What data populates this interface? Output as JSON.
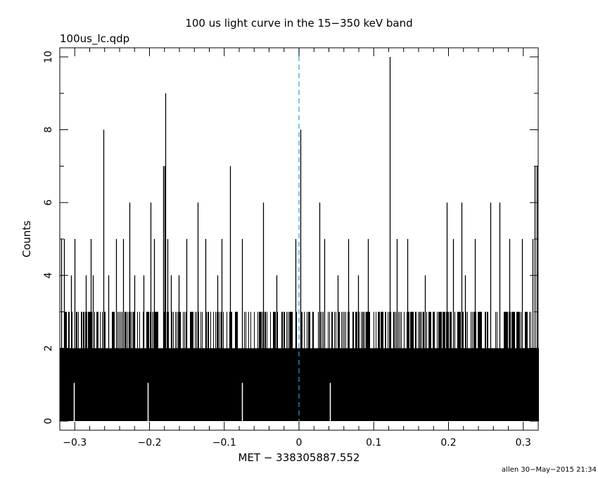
{
  "chart_data": {
    "type": "bar",
    "title": "100 us light curve in the 15−350 keV band",
    "file_label": "100us_lc.qdp",
    "xlabel": "MET − 338305887.552",
    "ylabel": "Counts",
    "footer": "allen 30−May−2015 21:34",
    "xlim": [
      -0.32,
      0.32
    ],
    "ylim": [
      -0.25,
      10.25
    ],
    "x_ticks": [
      -0.3,
      -0.2,
      -0.1,
      0,
      0.1,
      0.2,
      0.3
    ],
    "x_tick_labels": [
      "−0.3",
      "−0.2",
      "−0.1",
      "0",
      "0.1",
      "0.2",
      "0.3"
    ],
    "y_ticks": [
      0,
      2,
      4,
      6,
      8,
      10
    ],
    "y_tick_labels": [
      "0",
      "2",
      "4",
      "6",
      "8",
      "10"
    ],
    "bin_width": 0.0001,
    "grid": false,
    "trigger_line": {
      "x": 0,
      "color": "#2a9fd6",
      "style": "dashed"
    },
    "bar_color": "#000000",
    "series": [
      {
        "values_note_free": true,
        "peaks": [
          {
            "x": -0.318,
            "y": 5
          },
          {
            "x": -0.314,
            "y": 5
          },
          {
            "x": -0.305,
            "y": 4
          },
          {
            "x": -0.3,
            "y": 5
          },
          {
            "x": -0.285,
            "y": 4
          },
          {
            "x": -0.279,
            "y": 5
          },
          {
            "x": -0.276,
            "y": 4
          },
          {
            "x": -0.262,
            "y": 8
          },
          {
            "x": -0.255,
            "y": 4
          },
          {
            "x": -0.245,
            "y": 5
          },
          {
            "x": -0.235,
            "y": 5
          },
          {
            "x": -0.227,
            "y": 6
          },
          {
            "x": -0.22,
            "y": 4
          },
          {
            "x": -0.208,
            "y": 4
          },
          {
            "x": -0.199,
            "y": 6
          },
          {
            "x": -0.194,
            "y": 5
          },
          {
            "x": -0.182,
            "y": 7
          },
          {
            "x": -0.18,
            "y": 7
          },
          {
            "x": -0.179,
            "y": 9
          },
          {
            "x": -0.176,
            "y": 5
          },
          {
            "x": -0.171,
            "y": 4
          },
          {
            "x": -0.161,
            "y": 4
          },
          {
            "x": -0.151,
            "y": 5
          },
          {
            "x": -0.136,
            "y": 6
          },
          {
            "x": -0.125,
            "y": 5
          },
          {
            "x": -0.109,
            "y": 4
          },
          {
            "x": -0.104,
            "y": 5
          },
          {
            "x": -0.092,
            "y": 7
          },
          {
            "x": -0.076,
            "y": 5
          },
          {
            "x": -0.048,
            "y": 6
          },
          {
            "x": -0.03,
            "y": 4
          },
          {
            "x": -0.005,
            "y": 5
          },
          {
            "x": 0.002,
            "y": 8
          },
          {
            "x": 0.027,
            "y": 6
          },
          {
            "x": 0.034,
            "y": 5
          },
          {
            "x": 0.052,
            "y": 4
          },
          {
            "x": 0.066,
            "y": 5
          },
          {
            "x": 0.079,
            "y": 4
          },
          {
            "x": 0.092,
            "y": 5
          },
          {
            "x": 0.121,
            "y": 10
          },
          {
            "x": 0.131,
            "y": 5
          },
          {
            "x": 0.145,
            "y": 5
          },
          {
            "x": 0.168,
            "y": 4
          },
          {
            "x": 0.198,
            "y": 6
          },
          {
            "x": 0.206,
            "y": 5
          },
          {
            "x": 0.217,
            "y": 6
          },
          {
            "x": 0.222,
            "y": 4
          },
          {
            "x": 0.235,
            "y": 5
          },
          {
            "x": 0.256,
            "y": 6
          },
          {
            "x": 0.268,
            "y": 6
          },
          {
            "x": 0.281,
            "y": 5
          },
          {
            "x": 0.298,
            "y": 5
          },
          {
            "x": 0.312,
            "y": 5
          },
          {
            "x": 0.315,
            "y": 7
          },
          {
            "x": 0.318,
            "y": 7
          }
        ],
        "zero_bins": [
          -0.301,
          -0.202,
          -0.076,
          0.041
        ]
      }
    ]
  }
}
